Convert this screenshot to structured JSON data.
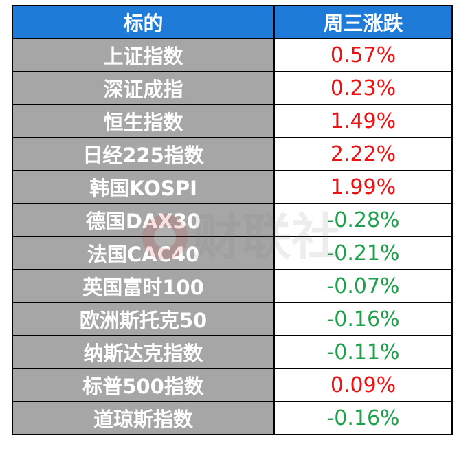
{
  "table": {
    "headers": [
      "标的",
      "周三涨跌"
    ],
    "rows": [
      {
        "name": "上证指数",
        "change": "0.57%",
        "dir": "up"
      },
      {
        "name": "深证成指",
        "change": "0.23%",
        "dir": "up"
      },
      {
        "name": "恒生指数",
        "change": "1.49%",
        "dir": "up"
      },
      {
        "name": "日经225指数",
        "change": "2.22%",
        "dir": "up"
      },
      {
        "name": "韩国KOSPI",
        "change": "1.99%",
        "dir": "up"
      },
      {
        "name": "德国DAX30",
        "change": "-0.28%",
        "dir": "down"
      },
      {
        "name": "法国CAC40",
        "change": "-0.21%",
        "dir": "down"
      },
      {
        "name": "英国富时100",
        "change": "-0.07%",
        "dir": "down"
      },
      {
        "name": "欧洲斯托克50",
        "change": "-0.16%",
        "dir": "down"
      },
      {
        "name": "纳斯达克指数",
        "change": "-0.11%",
        "dir": "down"
      },
      {
        "name": "标普500指数",
        "change": "0.09%",
        "dir": "up"
      },
      {
        "name": "道琼斯指数",
        "change": "-0.16%",
        "dir": "down"
      }
    ]
  },
  "watermark": {
    "text": "财联社"
  },
  "colors": {
    "header_bg": "#1f7bd8",
    "name_bg": "#a6a6a6",
    "up": "#ee1111",
    "down": "#1ca04a"
  }
}
